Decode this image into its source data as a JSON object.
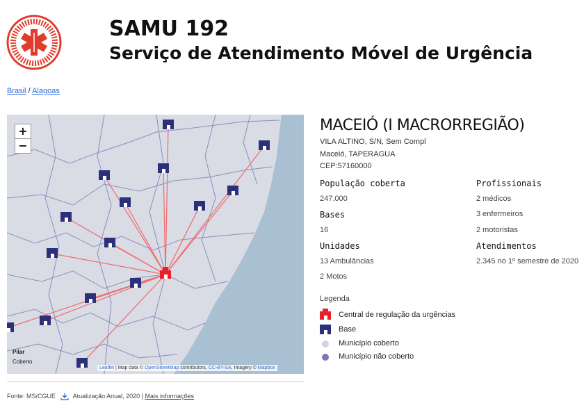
{
  "header": {
    "title": "SAMU 192",
    "subtitle": "Serviço de Atendimento Móvel de Urgência"
  },
  "breadcrumb": {
    "items": [
      "Brasil",
      "Alagoas"
    ],
    "separator": "/"
  },
  "map": {
    "zoom_in": "+",
    "zoom_out": "−",
    "place": "Pilar",
    "status": "Coberto",
    "attribution": [
      "Leaflet",
      " | Map data © ",
      "OpenStreetMap",
      " contributors, ",
      "CC-BY-SA",
      ", Imagery © ",
      "Mapbox"
    ]
  },
  "info": {
    "name": "MACEIÓ (I MACRORREGIÃO)",
    "address": [
      "VILA ALTINO, S/N, Sem Compl",
      "Maceió, TAPERAGUA",
      "CEP:57160000"
    ],
    "left": [
      {
        "label": "População coberta",
        "values": [
          "247.000"
        ]
      },
      {
        "label": "Bases",
        "values": [
          "16"
        ]
      },
      {
        "label": "Unidades",
        "values": [
          "13 Ambulâncias",
          "2 Motos"
        ]
      }
    ],
    "right": [
      {
        "label": "Profissionais",
        "values": [
          "2 médicos",
          "3 enfermeiros",
          "2 motoristas"
        ]
      },
      {
        "label": "Atendimentos",
        "values": [
          "2.345 no 1º semestre de 2020"
        ]
      }
    ]
  },
  "legend": {
    "title": "Legenda",
    "items": [
      "Central de regulação da urgências",
      "Base",
      "Município coberto",
      "Município não coberto"
    ]
  },
  "footer": {
    "source": "Fonte: MS/CGUE",
    "update": "Atualização Anual, 2020",
    "separator": "|",
    "link": "Mais informações"
  }
}
